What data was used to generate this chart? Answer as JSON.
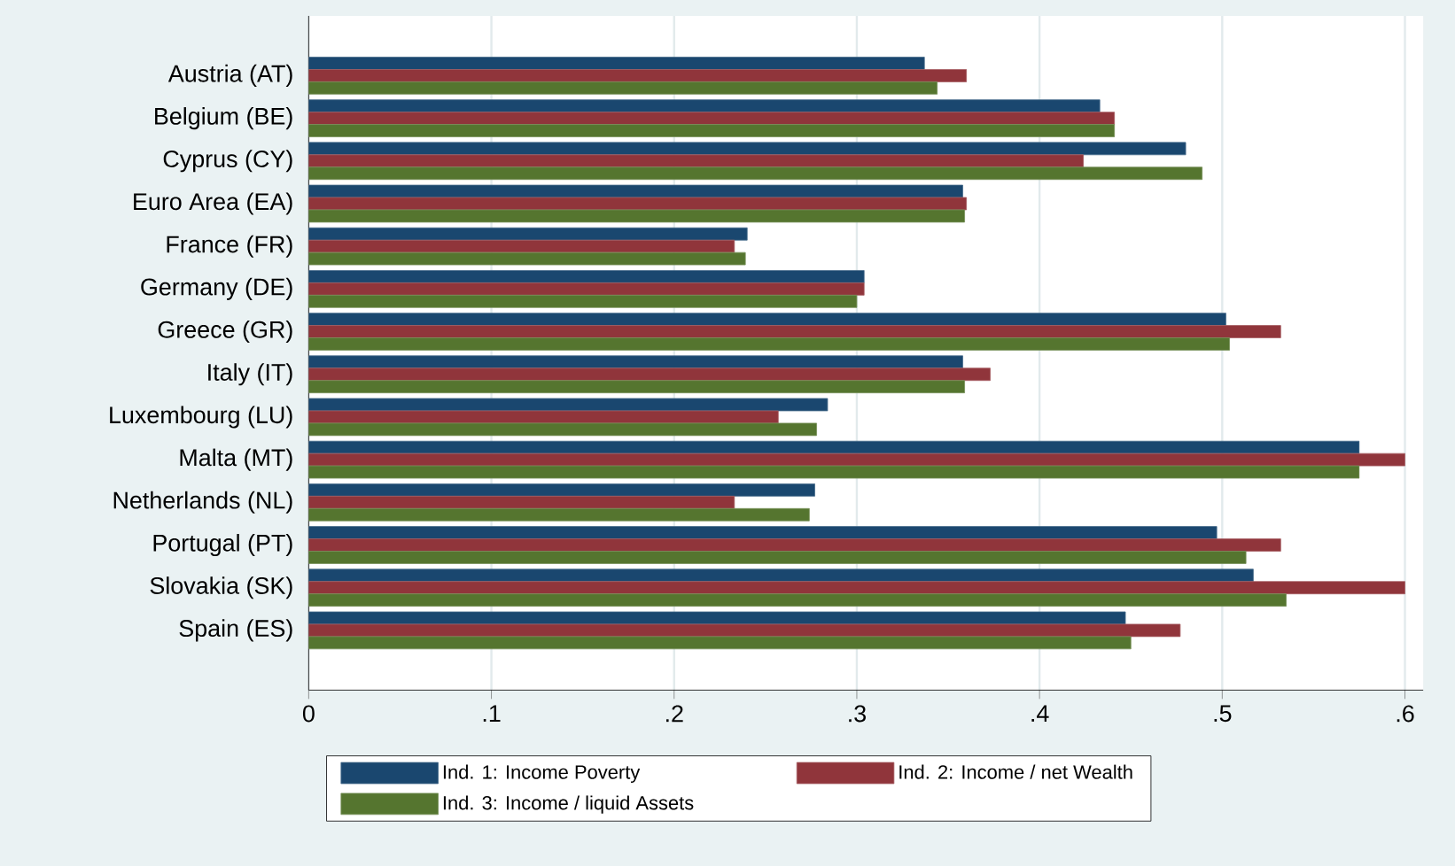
{
  "chart_data": {
    "type": "bar",
    "orientation": "horizontal",
    "categories": [
      "Austria (AT)",
      "Belgium (BE)",
      "Cyprus (CY)",
      "Euro Area (EA)",
      "France (FR)",
      "Germany (DE)",
      "Greece (GR)",
      "Italy (IT)",
      "Luxembourg (LU)",
      "Malta (MT)",
      "Netherlands (NL)",
      "Portugal (PT)",
      "Slovakia (SK)",
      "Spain (ES)"
    ],
    "series": [
      {
        "name": "Ind. 1: Income Poverty",
        "color": "#1a476f",
        "values": [
          0.337,
          0.433,
          0.48,
          0.358,
          0.24,
          0.304,
          0.502,
          0.358,
          0.284,
          0.575,
          0.277,
          0.497,
          0.517,
          0.447
        ]
      },
      {
        "name": "Ind. 2: Income / net Wealth",
        "color": "#90353b",
        "values": [
          0.36,
          0.441,
          0.424,
          0.36,
          0.233,
          0.304,
          0.532,
          0.373,
          0.257,
          0.6,
          0.233,
          0.532,
          0.6,
          0.477
        ]
      },
      {
        "name": "Ind. 3: Income / liquid Assets",
        "color": "#55752f",
        "values": [
          0.344,
          0.441,
          0.489,
          0.359,
          0.239,
          0.3,
          0.504,
          0.359,
          0.278,
          0.575,
          0.274,
          0.513,
          0.535,
          0.45
        ]
      }
    ],
    "xlim": [
      0,
      0.61
    ],
    "xticks": [
      0,
      {
        "value": 0.1,
        "label": ".1"
      },
      {
        "value": 0.2,
        "label": ".2"
      },
      {
        "value": 0.3,
        "label": ".3"
      },
      {
        "value": 0.4,
        "label": ".4"
      },
      {
        "value": 0.5,
        "label": ".5"
      },
      {
        "value": 0.6,
        "label": ".6"
      }
    ],
    "grid": "x",
    "legend": "bottom"
  }
}
